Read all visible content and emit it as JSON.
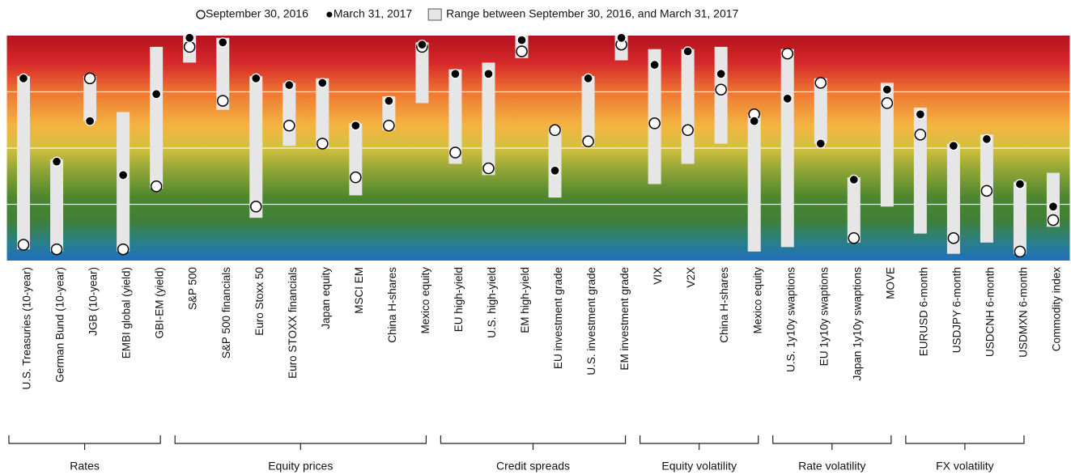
{
  "chart_data": {
    "type": "range-dot",
    "categories": [
      "U.S. Treasuries (10-year)",
      "German Bund (10-year)",
      "JGB (10-year)",
      "EMBI global (yield)",
      "GBI-EM (yield)",
      "S&P 500",
      "S&P 500 financials",
      "Euro Stoxx 50",
      "Euro STOXX financials",
      "Japan equity",
      "MSCI EM",
      "China H-shares",
      "Mexico equity",
      "EU high-yield",
      "U.S. high-yield",
      "EM high-yield",
      "EU investment grade",
      "U.S. investment grade",
      "EM investment grade",
      "VIX",
      "V2X",
      "China H-shares",
      "Mexico equity",
      "U.S. 1y10y swaptions",
      "EU 1y10y swaptions",
      "Japan 1y10y swaptions",
      "MOVE",
      "EURUSD 6-month",
      "USDJPY 6-month",
      "USDCNH 6-month",
      "USDMXN 6-month",
      "Commodity index"
    ],
    "series": [
      {
        "name": "September 30, 2016",
        "marker": "open",
        "values": [
          7,
          5,
          81,
          5,
          33,
          95,
          71,
          24,
          60,
          52,
          37,
          60,
          95,
          48,
          41,
          93,
          58,
          53,
          96,
          61,
          58,
          76,
          65,
          92,
          79,
          10,
          70,
          56,
          10,
          31,
          4,
          18
        ]
      },
      {
        "name": "March 31, 2017",
        "marker": "filled",
        "values": [
          81,
          44,
          62,
          38,
          74,
          99,
          97,
          81,
          78,
          79,
          60,
          71,
          96,
          83,
          83,
          98,
          40,
          81,
          99,
          87,
          93,
          83,
          62,
          72,
          52,
          36,
          76,
          65,
          51,
          54,
          34,
          24
        ]
      }
    ],
    "range": {
      "name": "Range between September 30, 2016, and March 31, 2017",
      "color": "#e6e6e6",
      "high": [
        82,
        45,
        82,
        66,
        95,
        100,
        99,
        82,
        79,
        81,
        61,
        73,
        97,
        85,
        88,
        100,
        59,
        82,
        100,
        94,
        94,
        95,
        65,
        94,
        81,
        37,
        79,
        68,
        52,
        56,
        35,
        39
      ],
      "low": [
        5,
        4,
        62,
        4,
        32,
        88,
        67,
        19,
        51,
        50,
        29,
        58,
        70,
        43,
        38,
        90,
        28,
        51,
        89,
        34,
        43,
        52,
        4,
        6,
        52,
        8,
        24,
        12,
        3,
        8,
        3,
        15
      ]
    },
    "groups": [
      {
        "label": "Rates",
        "first": 0,
        "last": 4
      },
      {
        "label": "Equity prices",
        "first": 5,
        "last": 12
      },
      {
        "label": "Credit spreads",
        "first": 13,
        "last": 18
      },
      {
        "label": "Equity volatility",
        "first": 19,
        "last": 22
      },
      {
        "label": "Rate volatility",
        "first": 23,
        "last": 26
      },
      {
        "label": "FX volatility",
        "first": 27,
        "last": 30
      }
    ],
    "ylim": [
      0,
      100
    ],
    "yticks": [
      25,
      50,
      75
    ],
    "grid": true,
    "legend": "top"
  }
}
